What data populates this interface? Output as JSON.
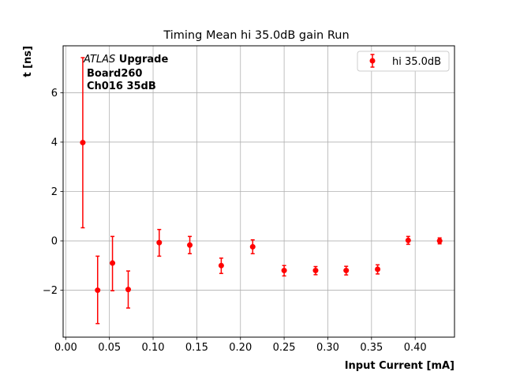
{
  "chart_data": {
    "type": "scatter",
    "title": "Timing Mean hi 35.0dB gain Run",
    "xlabel": "Input Current [mA]",
    "ylabel": "t [ns]",
    "xlim": [
      -0.003,
      0.445
    ],
    "ylim": [
      -3.9,
      7.9
    ],
    "xticks": [
      0.0,
      0.05,
      0.1,
      0.15,
      0.2,
      0.25,
      0.3,
      0.35,
      0.4
    ],
    "xtick_labels": [
      "0.00",
      "0.05",
      "0.10",
      "0.15",
      "0.20",
      "0.25",
      "0.30",
      "0.35",
      "0.40"
    ],
    "yticks": [
      -2,
      0,
      2,
      4,
      6
    ],
    "ytick_labels": [
      "−2",
      "0",
      "2",
      "4",
      "6"
    ],
    "grid": true,
    "legend_position": "top-right",
    "annotation": {
      "line1_italic": "ATLAS",
      "line1_bold": " Upgrade",
      "line2": "Board260",
      "line3": "Ch016 35dB"
    },
    "series": [
      {
        "name": "hi 35.0dB",
        "color": "#ff0000",
        "marker": "circle",
        "points": [
          {
            "x": 0.0195,
            "y": 3.98,
            "lo": 0.53,
            "hi": 7.42
          },
          {
            "x": 0.0365,
            "y": -2.0,
            "lo": -3.35,
            "hi": -0.62
          },
          {
            "x": 0.0535,
            "y": -0.9,
            "lo": -2.02,
            "hi": 0.18
          },
          {
            "x": 0.0715,
            "y": -1.97,
            "lo": -2.72,
            "hi": -1.22
          },
          {
            "x": 0.107,
            "y": -0.07,
            "lo": -0.62,
            "hi": 0.46
          },
          {
            "x": 0.142,
            "y": -0.17,
            "lo": -0.52,
            "hi": 0.18
          },
          {
            "x": 0.178,
            "y": -1.0,
            "lo": -1.32,
            "hi": -0.7
          },
          {
            "x": 0.214,
            "y": -0.24,
            "lo": -0.52,
            "hi": 0.04
          },
          {
            "x": 0.25,
            "y": -1.2,
            "lo": -1.42,
            "hi": -1.0
          },
          {
            "x": 0.286,
            "y": -1.2,
            "lo": -1.37,
            "hi": -1.04
          },
          {
            "x": 0.321,
            "y": -1.2,
            "lo": -1.38,
            "hi": -1.03
          },
          {
            "x": 0.357,
            "y": -1.15,
            "lo": -1.34,
            "hi": -0.97
          },
          {
            "x": 0.392,
            "y": 0.02,
            "lo": -0.14,
            "hi": 0.18
          },
          {
            "x": 0.428,
            "y": 0.0,
            "lo": -0.12,
            "hi": 0.12
          }
        ]
      }
    ]
  }
}
